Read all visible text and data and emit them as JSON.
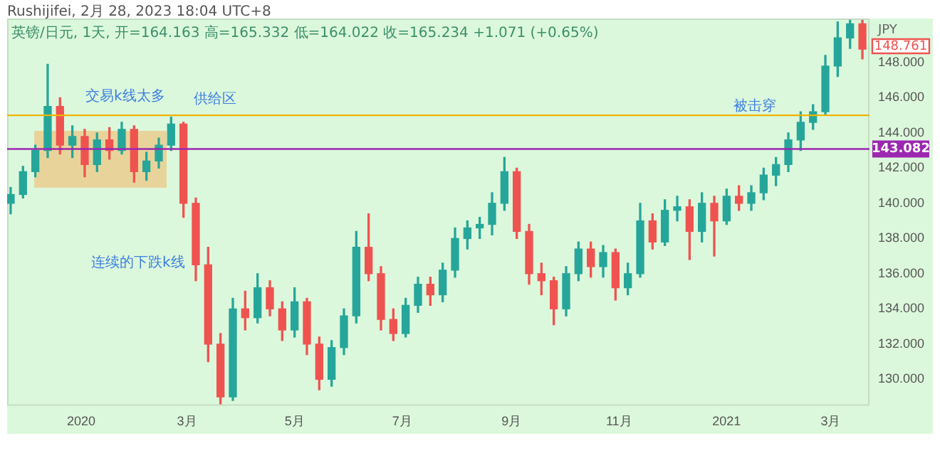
{
  "chart_data": {
    "type": "candlestick",
    "title": "Rushijifei, 2月 28, 2023 18:04 UTC+8",
    "subtitle": "英镑/日元, 1天, 开=164.163 高=165.332 低=164.022 收=165.234 +1.071 (+0.65%)",
    "ylabel": "JPY",
    "x": [
      "2019-11-22",
      "2019-11-29",
      "2019-12-06",
      "2019-12-13",
      "2019-12-20",
      "2019-12-27",
      "2020-01-03",
      "2020-01-10",
      "2020-01-17",
      "2020-01-24",
      "2020-01-31",
      "2020-02-07",
      "2020-02-14",
      "2020-02-21",
      "2020-02-28",
      "2020-03-06",
      "2020-03-13",
      "2020-03-20",
      "2020-03-27",
      "2020-04-03",
      "2020-04-10",
      "2020-04-17",
      "2020-04-24",
      "2020-05-01",
      "2020-05-08",
      "2020-05-15",
      "2020-05-22",
      "2020-05-29",
      "2020-06-05",
      "2020-06-12",
      "2020-06-19",
      "2020-06-26",
      "2020-07-03",
      "2020-07-10",
      "2020-07-17",
      "2020-07-24",
      "2020-07-31",
      "2020-08-07",
      "2020-08-14",
      "2020-08-21",
      "2020-08-28",
      "2020-09-04",
      "2020-09-11",
      "2020-09-18",
      "2020-09-25",
      "2020-10-02",
      "2020-10-09",
      "2020-10-16",
      "2020-10-23",
      "2020-10-30",
      "2020-11-06",
      "2020-11-13",
      "2020-11-20",
      "2020-11-27",
      "2020-12-04",
      "2020-12-11",
      "2020-12-18",
      "2020-12-25",
      "2021-01-01",
      "2021-01-08",
      "2021-01-15",
      "2021-01-22",
      "2021-01-29",
      "2021-02-05",
      "2021-02-12",
      "2021-02-19",
      "2021-02-26",
      "2021-03-05",
      "2021-03-12",
      "2021-03-19"
    ],
    "ohlc": [
      [
        140.0,
        140.9,
        139.4,
        140.5
      ],
      [
        140.5,
        142.1,
        140.3,
        141.8
      ],
      [
        141.8,
        143.3,
        141.5,
        143.0
      ],
      [
        143.0,
        147.9,
        142.6,
        145.5
      ],
      [
        145.5,
        146.0,
        142.8,
        143.3
      ],
      [
        143.3,
        144.4,
        142.6,
        143.8
      ],
      [
        143.8,
        144.2,
        141.5,
        142.2
      ],
      [
        142.2,
        144.0,
        141.8,
        143.6
      ],
      [
        143.6,
        144.3,
        142.5,
        143.0
      ],
      [
        143.0,
        144.6,
        142.8,
        144.2
      ],
      [
        144.2,
        144.4,
        141.2,
        141.8
      ],
      [
        141.8,
        142.9,
        141.3,
        142.4
      ],
      [
        142.4,
        143.7,
        142.0,
        143.3
      ],
      [
        143.3,
        144.9,
        143.0,
        144.5
      ],
      [
        144.5,
        144.6,
        139.2,
        140.0
      ],
      [
        140.0,
        140.3,
        135.6,
        136.5
      ],
      [
        136.5,
        137.5,
        131.0,
        132.0
      ],
      [
        132.0,
        132.6,
        128.6,
        129.0
      ],
      [
        129.0,
        134.6,
        128.8,
        134.0
      ],
      [
        134.0,
        135.0,
        132.8,
        133.5
      ],
      [
        133.5,
        136.0,
        133.2,
        135.2
      ],
      [
        135.2,
        135.6,
        133.6,
        134.0
      ],
      [
        134.0,
        134.4,
        132.2,
        132.8
      ],
      [
        132.8,
        135.2,
        132.4,
        134.4
      ],
      [
        134.4,
        134.6,
        131.4,
        132.0
      ],
      [
        132.0,
        132.4,
        129.4,
        130.0
      ],
      [
        130.0,
        132.2,
        129.6,
        131.8
      ],
      [
        131.8,
        134.0,
        131.4,
        133.6
      ],
      [
        133.6,
        138.4,
        133.2,
        137.5
      ],
      [
        137.5,
        139.4,
        135.6,
        136.0
      ],
      [
        136.0,
        136.4,
        132.8,
        133.4
      ],
      [
        133.4,
        134.0,
        132.2,
        132.6
      ],
      [
        132.6,
        134.6,
        132.4,
        134.2
      ],
      [
        134.2,
        135.8,
        133.8,
        135.4
      ],
      [
        135.4,
        135.8,
        134.2,
        134.8
      ],
      [
        134.8,
        136.6,
        134.4,
        136.2
      ],
      [
        136.2,
        138.6,
        135.8,
        138.0
      ],
      [
        138.0,
        139.0,
        137.4,
        138.6
      ],
      [
        138.6,
        139.2,
        138.0,
        138.8
      ],
      [
        138.8,
        140.6,
        138.2,
        140.0
      ],
      [
        140.0,
        142.6,
        139.6,
        141.8
      ],
      [
        141.8,
        142.0,
        138.0,
        138.4
      ],
      [
        138.4,
        138.8,
        135.4,
        136.0
      ],
      [
        136.0,
        136.6,
        134.8,
        135.6
      ],
      [
        135.6,
        135.8,
        133.1,
        134.0
      ],
      [
        134.0,
        136.4,
        133.6,
        136.0
      ],
      [
        136.0,
        137.8,
        135.6,
        137.4
      ],
      [
        137.4,
        137.8,
        135.8,
        136.4
      ],
      [
        136.4,
        137.6,
        135.8,
        137.2
      ],
      [
        137.2,
        137.4,
        134.5,
        135.2
      ],
      [
        135.2,
        136.6,
        134.8,
        136.0
      ],
      [
        136.0,
        140.0,
        135.8,
        139.0
      ],
      [
        139.0,
        139.4,
        137.4,
        137.8
      ],
      [
        137.8,
        140.2,
        137.6,
        139.6
      ],
      [
        139.6,
        140.4,
        139.0,
        139.8
      ],
      [
        139.8,
        140.2,
        136.8,
        138.4
      ],
      [
        138.4,
        140.6,
        137.8,
        140.0
      ],
      [
        140.0,
        140.4,
        137.0,
        139.0
      ],
      [
        139.0,
        140.8,
        138.8,
        140.4
      ],
      [
        140.4,
        141.0,
        139.6,
        140.0
      ],
      [
        140.0,
        141.0,
        139.6,
        140.6
      ],
      [
        140.6,
        142.0,
        140.2,
        141.6
      ],
      [
        141.6,
        142.6,
        141.0,
        142.2
      ],
      [
        142.2,
        144.0,
        141.8,
        143.6
      ],
      [
        143.6,
        145.2,
        143.0,
        144.6
      ],
      [
        144.6,
        145.6,
        144.2,
        145.2
      ],
      [
        145.2,
        148.4,
        145.0,
        147.8
      ],
      [
        147.8,
        150.3,
        147.2,
        149.4
      ],
      [
        149.4,
        150.4,
        148.8,
        150.2
      ],
      [
        150.2,
        150.4,
        148.2,
        148.761
      ]
    ],
    "colors": [
      "#26a69a",
      "#26a69a",
      "#26a69a",
      "#26a69a",
      "#ef5350",
      "#26a69a",
      "#ef5350",
      "#26a69a",
      "#ef5350",
      "#26a69a",
      "#ef5350",
      "#26a69a",
      "#26a69a",
      "#26a69a",
      "#ef5350",
      "#ef5350",
      "#ef5350",
      "#ef5350",
      "#26a69a",
      "#ef5350",
      "#26a69a",
      "#ef5350",
      "#ef5350",
      "#26a69a",
      "#ef5350",
      "#ef5350",
      "#26a69a",
      "#26a69a",
      "#26a69a",
      "#ef5350",
      "#ef5350",
      "#ef5350",
      "#26a69a",
      "#26a69a",
      "#ef5350",
      "#26a69a",
      "#26a69a",
      "#26a69a",
      "#26a69a",
      "#26a69a",
      "#26a69a",
      "#ef5350",
      "#ef5350",
      "#ef5350",
      "#ef5350",
      "#26a69a",
      "#26a69a",
      "#ef5350",
      "#26a69a",
      "#ef5350",
      "#26a69a",
      "#26a69a",
      "#ef5350",
      "#26a69a",
      "#26a69a",
      "#ef5350",
      "#26a69a",
      "#ef5350",
      "#26a69a",
      "#ef5350",
      "#26a69a",
      "#26a69a",
      "#26a69a",
      "#26a69a",
      "#26a69a",
      "#26a69a",
      "#26a69a",
      "#26a69a",
      "#26a69a",
      "#ef5350"
    ],
    "xlim": [
      "2019-11-20",
      "2021-03-23"
    ],
    "xticks": [
      {
        "value": "2020-01-01",
        "label": "2020"
      },
      {
        "value": "2020-03-01",
        "label": "3月"
      },
      {
        "value": "2020-05-01",
        "label": "5月"
      },
      {
        "value": "2020-07-01",
        "label": "7月"
      },
      {
        "value": "2020-09-01",
        "label": "9月"
      },
      {
        "value": "2020-11-01",
        "label": "11月"
      },
      {
        "value": "2021-01-01",
        "label": "2021"
      },
      {
        "value": "2021-03-01",
        "label": "3月"
      }
    ],
    "ylim": [
      128.5,
      150.5
    ],
    "yticks": [
      {
        "value": 130,
        "label": "130.000"
      },
      {
        "value": 132,
        "label": "132.000"
      },
      {
        "value": 134,
        "label": "134.000"
      },
      {
        "value": 136,
        "label": "136.000"
      },
      {
        "value": 138,
        "label": "138.000"
      },
      {
        "value": 140,
        "label": "140.000"
      },
      {
        "value": 142,
        "label": "142.000"
      },
      {
        "value": 144,
        "label": "144.000"
      },
      {
        "value": 146,
        "label": "146.000"
      },
      {
        "value": 148,
        "label": "148.000"
      }
    ],
    "ref_lines": [
      {
        "axis": "y",
        "value": 145.0,
        "color": "#f0b400"
      },
      {
        "axis": "y",
        "value": 143.082,
        "label": "143.082",
        "color": "#9c27b0"
      }
    ],
    "annotations": [
      "交易k线太多",
      "供给区",
      "连续的下跌k线",
      "被击穿",
      "148.761"
    ]
  }
}
